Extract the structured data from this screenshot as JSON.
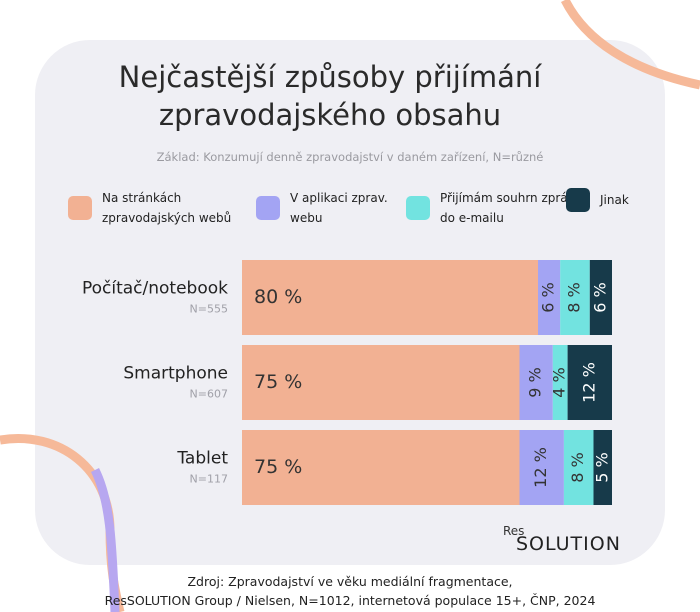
{
  "chart_data": {
    "type": "stacked-bar-horizontal",
    "title": "Nejčastější způsoby přijímání zpravodajského obsahu",
    "subtitle": "Základ: Konzumují denně zpravodajství v daném zařízení, N=různé",
    "categories": [
      "Počítač/notebook",
      "Smartphone",
      "Tablet"
    ],
    "category_notes": [
      "N=555",
      "N=607",
      "N=117"
    ],
    "series": [
      {
        "name": "Na stránkách zpravodajských webů",
        "color": "#f2b193",
        "values": [
          80,
          75,
          75
        ],
        "value_labels": [
          "80 %",
          "75 %",
          "75 %"
        ]
      },
      {
        "name": "V aplikaci zprav. webu",
        "color": "#a3a4f3",
        "values": [
          6,
          9,
          12
        ],
        "value_labels": [
          "6 %",
          "9 %",
          "12 %"
        ]
      },
      {
        "name": "Přijímám souhrn zpráv do e-mailu",
        "color": "#72e3e0",
        "values": [
          8,
          4,
          8
        ],
        "value_labels": [
          "8 %",
          "4 %",
          "8 %"
        ]
      },
      {
        "name": "Jinak",
        "color": "#173a4a",
        "values": [
          6,
          12,
          5
        ],
        "value_labels": [
          "6 %",
          "12 %",
          "5 %"
        ]
      }
    ],
    "source": [
      "Zdroj: Zpravodajství ve věku mediální fragmentace,",
      "ResSOLUTION Group / Nielsen, N=1012, internetová populace 15+, ČNP, 2024"
    ],
    "logo": [
      "Res",
      "SOLUTION"
    ]
  }
}
